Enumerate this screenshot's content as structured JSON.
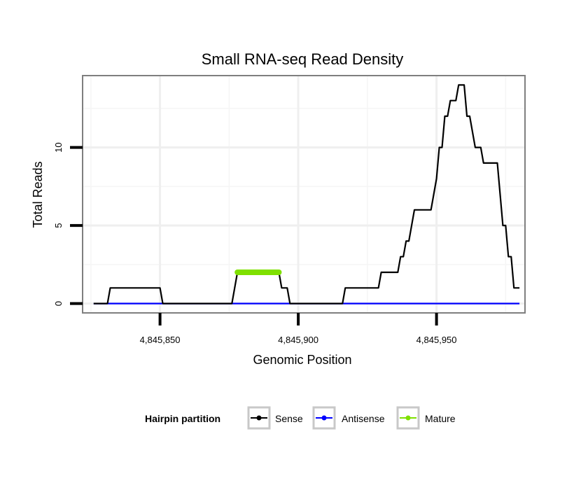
{
  "chart_data": {
    "type": "line",
    "title": "Small RNA-seq Read Density",
    "xlabel": "Genomic Position",
    "ylabel": "Total Reads",
    "xlim": [
      4845822,
      4845982
    ],
    "ylim": [
      -0.6,
      14.6
    ],
    "x_ticks": [
      4845850,
      4845900,
      4845950
    ],
    "x_tick_labels": [
      "4,845,850",
      "4,845,900",
      "4,845,950"
    ],
    "y_ticks": [
      0,
      5,
      10
    ],
    "y_tick_labels": [
      "0",
      "5",
      "10"
    ],
    "grid": true,
    "legend": {
      "title": "Hairpin partition",
      "position": "bottom",
      "entries": [
        {
          "name": "Sense",
          "color": "#000000"
        },
        {
          "name": "Antisense",
          "color": "#0000ff"
        },
        {
          "name": "Mature",
          "color": "#7fe000"
        }
      ]
    },
    "series": [
      {
        "name": "Sense",
        "color": "#000000",
        "x": [
          4845826,
          4845831,
          4845832,
          4845850,
          4845851,
          4845876,
          4845877,
          4845878,
          4845893,
          4845894,
          4845896,
          4845897,
          4845916,
          4845917,
          4845918,
          4845929,
          4845930,
          4845936,
          4845937,
          4845938,
          4845939,
          4845940,
          4845942,
          4845948,
          4845949,
          4845950,
          4845951,
          4845952,
          4845953,
          4845954,
          4845955,
          4845957,
          4845958,
          4845959,
          4845960,
          4845961,
          4845962,
          4845963,
          4845964,
          4845965,
          4845966,
          4845967,
          4845969,
          4845970,
          4845972,
          4845973,
          4845974,
          4845975,
          4845976,
          4845977,
          4845978,
          4845980
        ],
        "values": [
          0,
          0,
          1,
          1,
          0,
          0,
          1,
          2,
          2,
          1,
          1,
          0,
          0,
          1,
          1,
          1,
          2,
          2,
          3,
          3,
          4,
          4,
          6,
          6,
          7,
          8,
          10,
          10,
          12,
          12,
          13,
          13,
          14,
          14,
          14,
          12,
          12,
          11,
          10,
          10,
          10,
          9,
          9,
          9,
          9,
          7,
          5,
          5,
          3,
          3,
          1,
          1
        ]
      },
      {
        "name": "Antisense",
        "color": "#0000ff",
        "x": [
          4845826,
          4845980
        ],
        "values": [
          0,
          0
        ]
      },
      {
        "name": "Mature",
        "color": "#7fe000",
        "x": [
          4845878,
          4845893
        ],
        "values": [
          2,
          2
        ]
      }
    ]
  }
}
